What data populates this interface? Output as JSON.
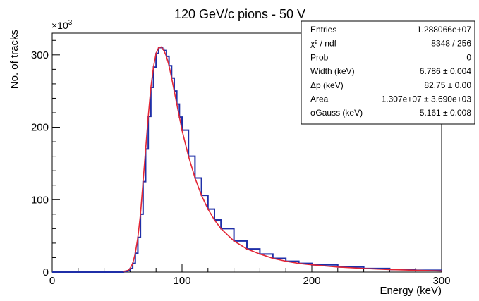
{
  "chart_data": {
    "type": "line",
    "title": "120 GeV/c pions - 50 V",
    "xlabel": "Energy (keV)",
    "ylabel": "No. of tracks",
    "y_multiplier_label": "×10",
    "y_multiplier_exponent": "3",
    "xlim": [
      0,
      300
    ],
    "ylim": [
      0,
      330
    ],
    "x_ticks": [
      0,
      100,
      200,
      300
    ],
    "y_ticks": [
      0,
      100,
      200,
      300
    ],
    "x_tick_labels": [
      "0",
      "100",
      "200",
      "300"
    ],
    "y_tick_labels": [
      "0",
      "100",
      "200",
      "300"
    ],
    "grid": false,
    "y_units_note": "values in thousands of tracks",
    "series": [
      {
        "role": "histogram",
        "color": "#1f2fa8",
        "x": [
          0,
          40,
          55,
          58,
          60,
          62,
          64,
          66,
          68,
          70,
          72,
          74,
          76,
          78,
          80,
          82,
          84,
          85,
          86,
          88,
          90,
          92,
          94,
          96,
          98,
          100,
          105,
          110,
          115,
          120,
          125,
          130,
          140,
          150,
          160,
          170,
          180,
          190,
          200,
          220,
          240,
          260,
          280,
          300
        ],
        "y": [
          0,
          0,
          1,
          2,
          5,
          12,
          26,
          48,
          80,
          125,
          170,
          215,
          255,
          283,
          302,
          310,
          310,
          308,
          306,
          298,
          285,
          268,
          250,
          232,
          214,
          196,
          160,
          130,
          106,
          87,
          72,
          60,
          43,
          32,
          25,
          19,
          15,
          12,
          10,
          7,
          5,
          3.5,
          2.5,
          1.5
        ]
      },
      {
        "role": "fit",
        "color": "#e32636",
        "x": [
          55,
          58,
          60,
          62,
          64,
          66,
          68,
          70,
          72,
          74,
          76,
          78,
          80,
          82,
          84,
          85,
          86,
          88,
          90,
          92,
          94,
          96,
          98,
          100,
          105,
          110,
          115,
          120,
          125,
          130,
          140,
          150,
          160,
          170,
          180,
          190,
          200,
          220,
          240,
          260,
          280,
          300
        ],
        "y": [
          1,
          2,
          5,
          12,
          26,
          48,
          80,
          125,
          170,
          215,
          255,
          283,
          302,
          310,
          311,
          309,
          306,
          298,
          285,
          268,
          250,
          232,
          214,
          196,
          160,
          130,
          106,
          87,
          72,
          60,
          43,
          32,
          25,
          19,
          15,
          12,
          10,
          7,
          5,
          3.5,
          2.5,
          1.5
        ]
      }
    ],
    "stats_box": {
      "position": "top-right",
      "rows": [
        {
          "label": "Entries",
          "value": "1.288066e+07"
        },
        {
          "label": "χ² / ndf",
          "value": "8348 / 256"
        },
        {
          "label": "Prob",
          "value": "0"
        },
        {
          "label": "Width (keV)",
          "value": "6.786 ± 0.004"
        },
        {
          "label": "Δp (keV)",
          "value": "82.75 ± 0.00"
        },
        {
          "label": "Area",
          "value": "1.307e+07 ± 3.690e+03"
        },
        {
          "label": "σGauss (keV)",
          "value": "5.161 ± 0.008"
        }
      ]
    }
  }
}
